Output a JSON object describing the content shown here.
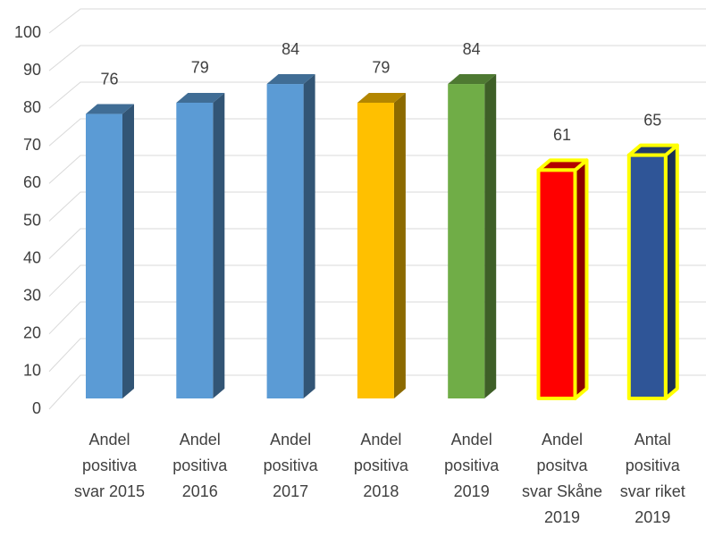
{
  "chart_data": {
    "type": "bar3d",
    "categories": [
      "Andel positiva svar 2015",
      "Andel positiva 2016",
      "Andel positiva 2017",
      "Andel positiva 2018",
      "Andel positiva 2019",
      "Andel positva svar Skåne 2019",
      "Antal positiva svar riket 2019"
    ],
    "values": [
      76,
      79,
      84,
      79,
      84,
      61,
      65
    ],
    "colors": [
      "#5b9bd5",
      "#5b9bd5",
      "#5b9bd5",
      "#ffc000",
      "#70ad47",
      "#ff0000",
      "#2f5597"
    ],
    "edge_colors": [
      null,
      null,
      null,
      null,
      null,
      "#ffff00",
      "#ffff00"
    ],
    "ylim": [
      0,
      100
    ],
    "yticks": [
      0,
      10,
      20,
      30,
      40,
      50,
      60,
      70,
      80,
      90,
      100
    ],
    "grid": true
  }
}
